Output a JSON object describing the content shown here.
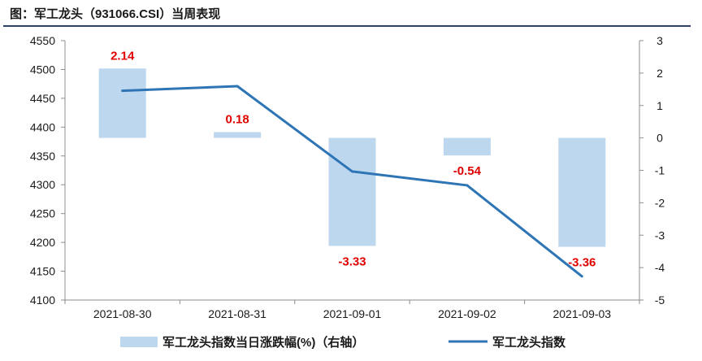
{
  "page_title": "图：军工龙头（931066.CSI）当周表现",
  "chart_data": {
    "type": "bar+line",
    "title": "图：军工龙头（931066.CSI）当周表现",
    "categories": [
      "2021-08-30",
      "2021-08-31",
      "2021-09-01",
      "2021-09-02",
      "2021-09-03"
    ],
    "series": [
      {
        "name": "军工龙头指数当日涨跌幅(%)（右轴）",
        "type": "bar",
        "axis": "right",
        "values": [
          2.14,
          0.18,
          -3.33,
          -0.54,
          -3.36
        ],
        "labels": [
          "2.14",
          "0.18",
          "-3.33",
          "-0.54",
          "-3.36"
        ]
      },
      {
        "name": "军工龙头指数",
        "type": "line",
        "axis": "left",
        "values": [
          4463,
          4471,
          4323,
          4299,
          4141
        ]
      }
    ],
    "left_axis": {
      "ylim": [
        4100,
        4550
      ],
      "ticks": [
        "4100",
        "4150",
        "4200",
        "4250",
        "4300",
        "4350",
        "4400",
        "4450",
        "4500",
        "4550"
      ]
    },
    "right_axis": {
      "ylim": [
        -5,
        3
      ],
      "ticks": [
        "-5",
        "-4",
        "-3",
        "-2",
        "-1",
        "0",
        "1",
        "2",
        "3"
      ]
    },
    "colors": {
      "bar": "#bdd7ee",
      "line": "#2e75b6",
      "label": "#e00000"
    },
    "legend": {
      "placement": "bottom",
      "bar_label": "军工龙头指数当日涨跌幅(%)（右轴）",
      "line_label": "军工龙头指数"
    }
  }
}
